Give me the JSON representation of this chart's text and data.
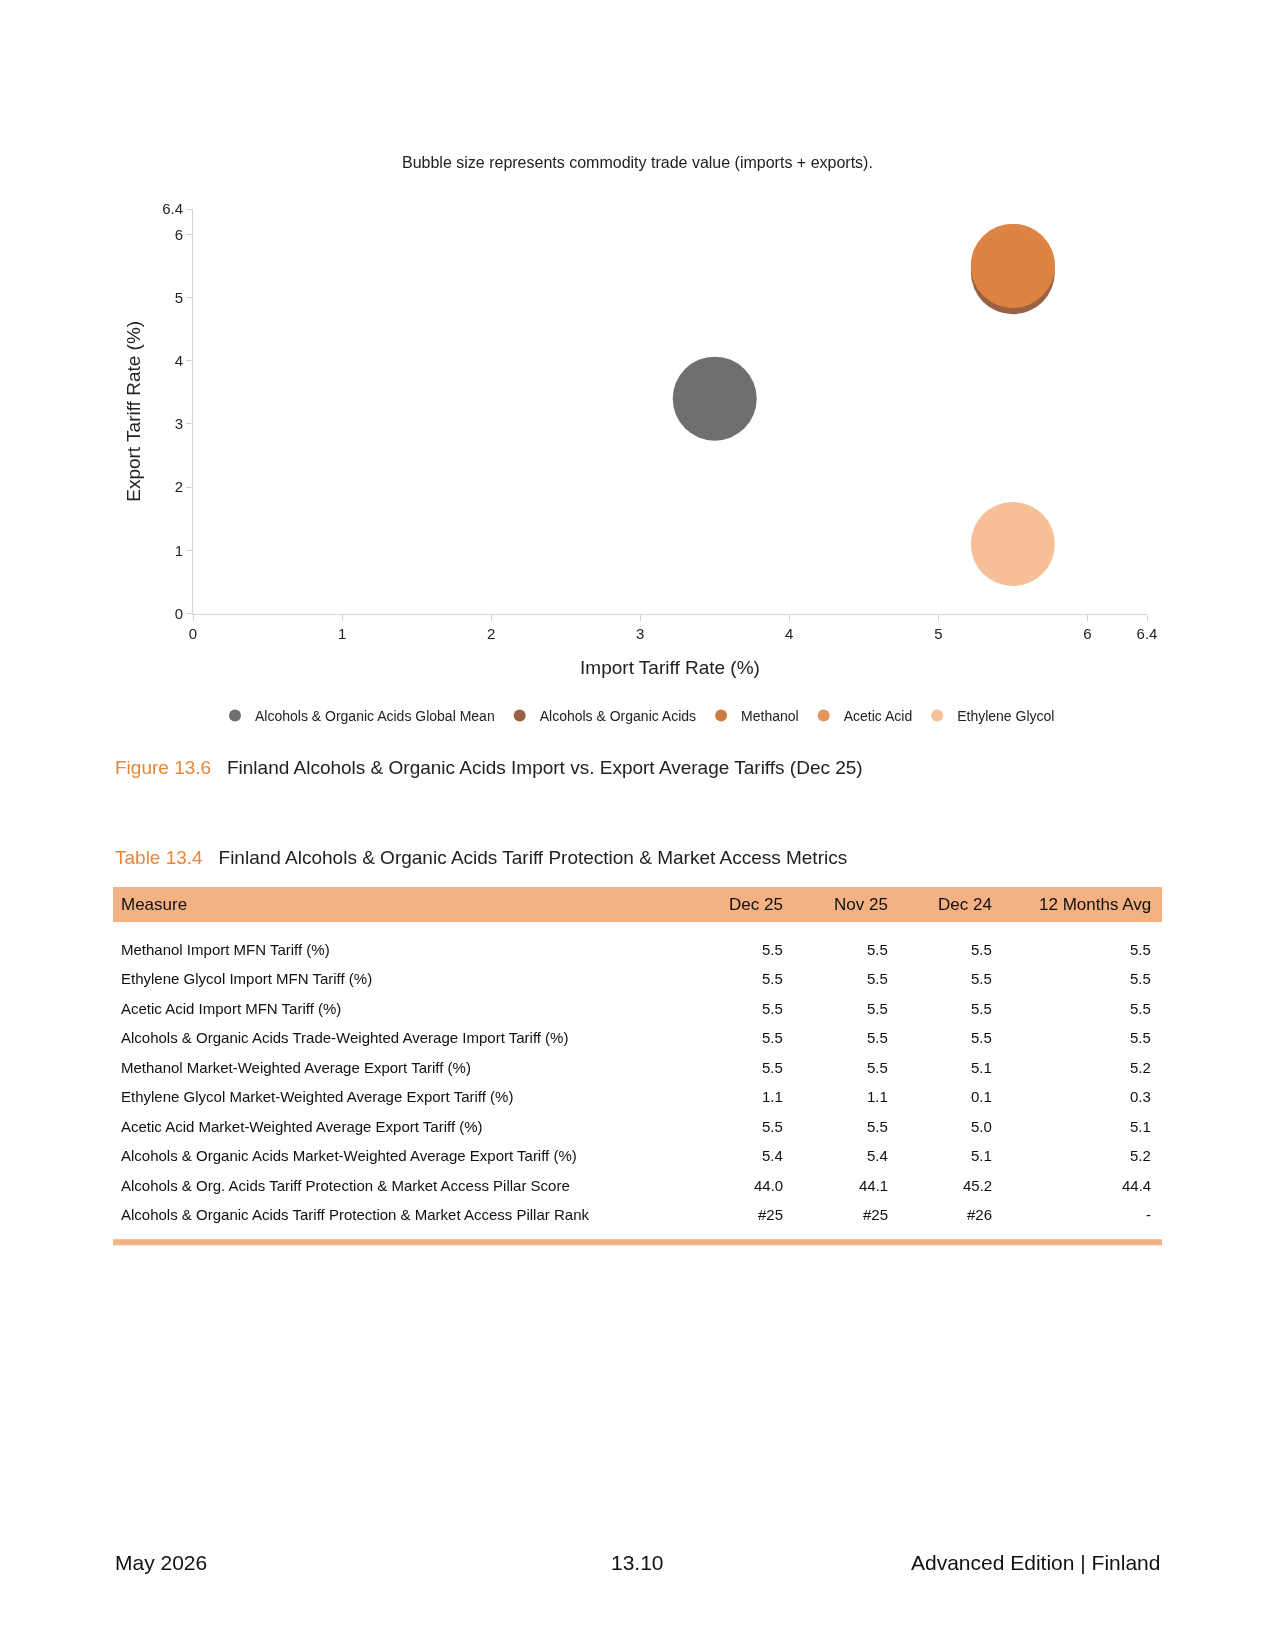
{
  "chart_data": [
    {
      "type": "bubble",
      "title": "Figure 13.6  Finland Alcohols & Organic Acids Import vs. Export Average Tariffs (Dec 25)",
      "subtitle": "Bubble size represents commodity trade value (imports + exports).",
      "xlabel": "Import Tariff Rate (%)",
      "ylabel": "Export Tariff Rate (%)",
      "xlim": [
        0,
        6.4
      ],
      "xticks": [
        0,
        1,
        2,
        3,
        4,
        5,
        6,
        6.4
      ],
      "ylim": [
        0,
        6.4
      ],
      "yticks": [
        0,
        1,
        2,
        3,
        4,
        5,
        6,
        6.4
      ],
      "legend": "bottom",
      "marker": "circle",
      "x": [
        3.5,
        5.5
      ],
      "series": [
        {
          "name": "Alcohols & Organic Acids Global Mean",
          "color": "#5b5b5b",
          "values": [
            3.4,
            null
          ],
          "sizes": [
            1,
            null
          ]
        },
        {
          "name": "Alcohols & Organic Acids",
          "color": "#8c4b2e",
          "values": [
            null,
            5.4
          ],
          "sizes": [
            null,
            1
          ]
        },
        {
          "name": "Methanol",
          "color": "#c66a2c",
          "values": [
            null,
            5.5
          ],
          "sizes": [
            null,
            1
          ]
        },
        {
          "name": "Acetic Acid",
          "color": "#e08646",
          "values": [
            null,
            5.5
          ],
          "sizes": [
            null,
            1
          ]
        },
        {
          "name": "Ethylene Glycol",
          "color": "#f5b688",
          "values": [
            null,
            1.1
          ],
          "sizes": [
            null,
            1
          ]
        }
      ],
      "annotations": [
        "May 2026",
        "13.10",
        "Advanced Edition | Finland"
      ]
    },
    {
      "type": "other",
      "title": "Table 13.4  Finland Alcohols & Organic Acids Tariff Protection & Market Access Metrics",
      "ylabel": "Measure",
      "color": "#f4b183",
      "categories": [
        "Dec 25",
        "Nov 25",
        "Dec 24",
        "12 Months Avg"
      ],
      "y_categories": [
        "Methanol Import MFN Tariff (%)",
        "Ethylene Glycol Import MFN Tariff (%)",
        "Acetic Acid Import MFN Tariff (%)",
        "Alcohols & Organic Acids Trade-Weighted Average Import Tariff (%)",
        "Methanol Market-Weighted Average Export Tariff (%)",
        "Ethylene Glycol Market-Weighted Average Export Tariff (%)",
        "Acetic Acid Market-Weighted Average Export Tariff (%)",
        "Alcohols & Organic Acids Market-Weighted Average Export Tariff (%)",
        "Alcohols & Org. Acids Tariff Protection & Market Access Pillar Score",
        "Alcohols & Organic Acids Tariff Protection & Market Access Pillar Rank"
      ],
      "cell_labels": [
        [
          "5.5",
          "5.5",
          "5.5",
          "5.5"
        ],
        [
          "5.5",
          "5.5",
          "5.5",
          "5.5"
        ],
        [
          "5.5",
          "5.5",
          "5.5",
          "5.5"
        ],
        [
          "5.5",
          "5.5",
          "5.5",
          "5.5"
        ],
        [
          "5.5",
          "5.5",
          "5.1",
          "5.2"
        ],
        [
          "1.1",
          "1.1",
          "0.1",
          "0.3"
        ],
        [
          "5.5",
          "5.5",
          "5.0",
          "5.1"
        ],
        [
          "5.4",
          "5.4",
          "5.1",
          "5.2"
        ],
        [
          "44.0",
          "44.1",
          "45.2",
          "44.4"
        ],
        [
          "#25",
          "#25",
          "#26",
          "-"
        ]
      ]
    }
  ]
}
